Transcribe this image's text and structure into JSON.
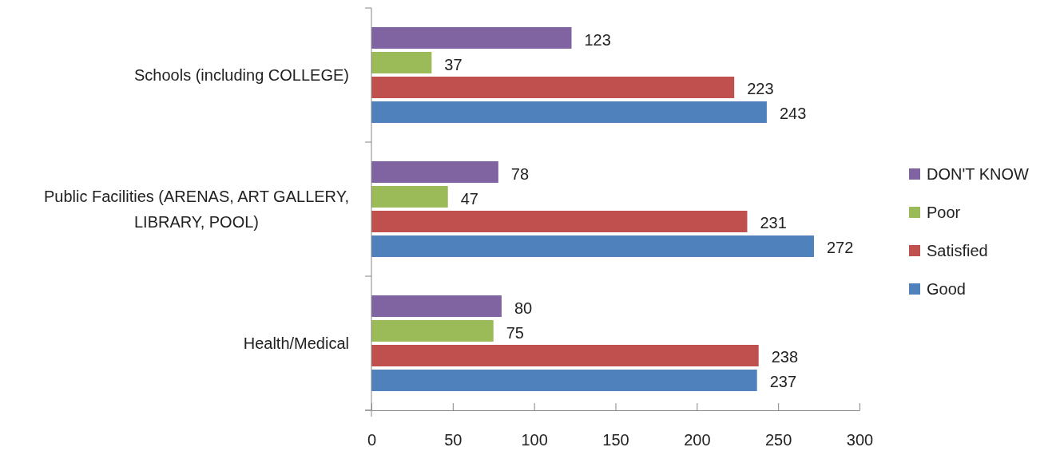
{
  "chart_data": {
    "type": "bar",
    "orientation": "horizontal",
    "categories": [
      "Schools (including COLLEGE)",
      "Public Facilities (ARENAS, ART GALLERY, LIBRARY, POOL)",
      "Health/Medical"
    ],
    "series": [
      {
        "name": "DON'T KNOW",
        "color": "#8064a2",
        "values": [
          123,
          78,
          80
        ]
      },
      {
        "name": "Poor",
        "color": "#9bbb59",
        "values": [
          37,
          47,
          75
        ]
      },
      {
        "name": "Satisfied",
        "color": "#c0504d",
        "values": [
          223,
          231,
          238
        ]
      },
      {
        "name": "Good",
        "color": "#4f81bd",
        "values": [
          243,
          272,
          237
        ]
      }
    ],
    "xlim": [
      0,
      300
    ],
    "xticks": [
      0,
      50,
      100,
      150,
      200,
      250,
      300
    ],
    "data_labels": true,
    "legend": "right"
  }
}
